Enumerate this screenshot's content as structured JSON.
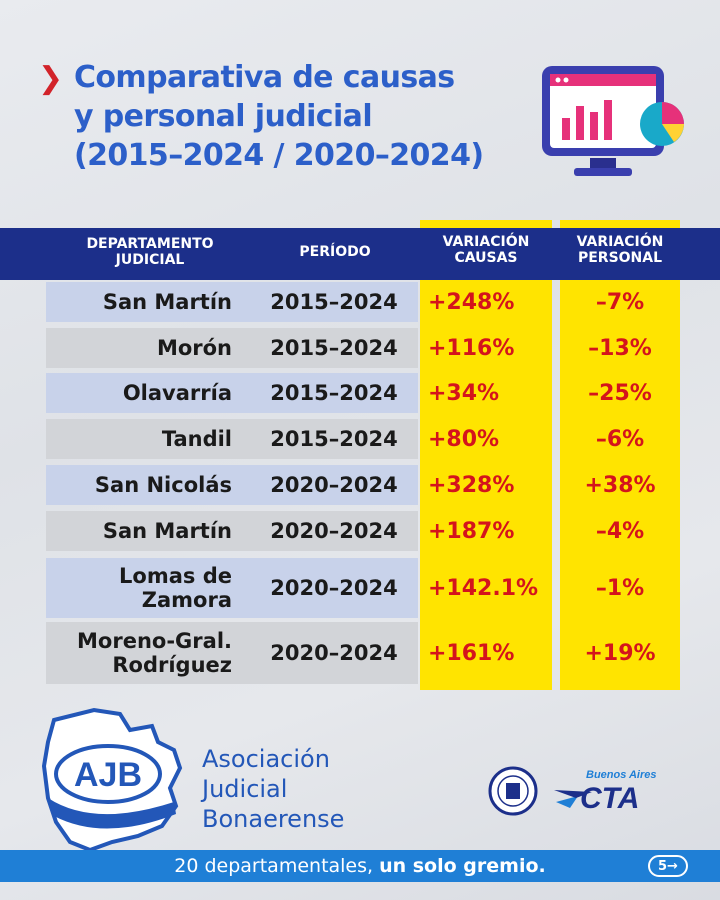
{
  "title": {
    "line1": "Comparativa de causas",
    "line2": "y personal judicial",
    "line3": "(2015–2024 / 2020–2024)"
  },
  "table": {
    "headers": {
      "dept_line1": "DEPARTAMENTO",
      "dept_line2": "JUDICIAL",
      "period": "PERÍODO",
      "causas_line1": "VARIACIÓN",
      "causas_line2": "CAUSAS",
      "personal_line1": "VARIACIÓN",
      "personal_line2": "PERSONAL"
    },
    "rows": [
      {
        "dept_line1": "San Martín",
        "dept_line2": "",
        "period": "2015–2024",
        "causas": "+248%",
        "personal": "–7%"
      },
      {
        "dept_line1": "Morón",
        "dept_line2": "",
        "period": "2015–2024",
        "causas": "+116%",
        "personal": "–13%"
      },
      {
        "dept_line1": "Olavarría",
        "dept_line2": "",
        "period": "2015–2024",
        "causas": "+34%",
        "personal": "–25%"
      },
      {
        "dept_line1": "Tandil",
        "dept_line2": "",
        "period": "2015–2024",
        "causas": "+80%",
        "personal": "–6%"
      },
      {
        "dept_line1": "San Nicolás",
        "dept_line2": "",
        "period": "2020–2024",
        "causas": "+328%",
        "personal": "+38%"
      },
      {
        "dept_line1": "San Martín",
        "dept_line2": "",
        "period": "2020–2024",
        "causas": "+187%",
        "personal": "–4%"
      },
      {
        "dept_line1": "Lomas de",
        "dept_line2": "Zamora",
        "period": "2020–2024",
        "causas": "+142.1%",
        "personal": "–1%"
      },
      {
        "dept_line1": "Moreno-Gral.",
        "dept_line2": "Rodríguez",
        "period": "2020–2024",
        "causas": "+161%",
        "personal": "+19%"
      }
    ]
  },
  "organization": {
    "logo_text": "AJB",
    "name_line1": "Asociación",
    "name_line2": "Judicial",
    "name_line3": "Bonaerense",
    "cta_text": "CTA",
    "cta_small": "Buenos Aires"
  },
  "footer": {
    "text_regular": "20 departamentales,",
    "text_bold": "un solo gremio.",
    "page": "5→"
  },
  "colors": {
    "title_blue": "#2c5fc9",
    "header_navy": "#1c2f8a",
    "highlight_yellow": "#ffe400",
    "value_red": "#d4141c",
    "footer_blue": "#1f7fd6"
  },
  "icons": [
    "chevron-right-icon",
    "computer-chart-icon",
    "ajb-logo",
    "seal-icon",
    "cta-logo"
  ]
}
